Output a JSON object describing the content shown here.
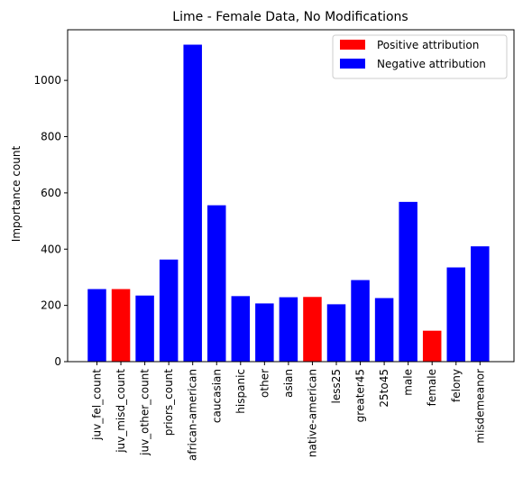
{
  "chart_data": {
    "type": "bar",
    "title": "Lime - Female Data, No Modifications",
    "xlabel": "",
    "ylabel": "Importance count",
    "ylim": [
      0,
      1180
    ],
    "yticks": [
      0,
      200,
      400,
      600,
      800,
      1000
    ],
    "grid": false,
    "legend_placement": "top-right",
    "categories": [
      "juv_fel_count",
      "juv_misd_count",
      "juv_other_count",
      "priors_count",
      "african-american",
      "caucasian",
      "hispanic",
      "other",
      "asian",
      "native-american",
      "less25",
      "greater45",
      "25to45",
      "male",
      "female",
      "felony",
      "misdemeanor"
    ],
    "values": [
      258,
      258,
      235,
      363,
      1127,
      556,
      233,
      207,
      229,
      230,
      204,
      290,
      226,
      568,
      110,
      335,
      410
    ],
    "attribution": [
      "negative",
      "positive",
      "negative",
      "negative",
      "negative",
      "negative",
      "negative",
      "negative",
      "negative",
      "positive",
      "negative",
      "negative",
      "negative",
      "negative",
      "positive",
      "negative",
      "negative"
    ],
    "legend": [
      {
        "key": "positive",
        "label": "Positive attribution",
        "color": "#ff0000"
      },
      {
        "key": "negative",
        "label": "Negative attribution",
        "color": "#0000ff"
      }
    ]
  }
}
